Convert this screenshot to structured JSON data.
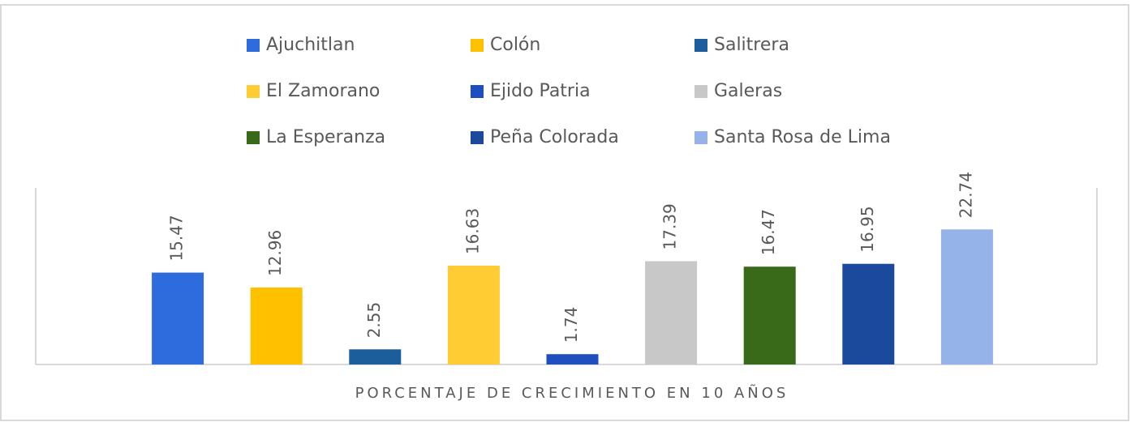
{
  "chart_data": {
    "type": "bar",
    "categories": [
      "PORCENTAJE DE CRECIMIENTO EN 10 AÑOS"
    ],
    "series": [
      {
        "name": "Ajuchitlan",
        "color": "#2e6bdc",
        "values": [
          15.47
        ]
      },
      {
        "name": "Colón",
        "color": "#ffc000",
        "values": [
          12.96
        ]
      },
      {
        "name": "Salitrera",
        "color": "#1c5d9c",
        "values": [
          2.55
        ]
      },
      {
        "name": "El Zamorano",
        "color": "#ffcc33",
        "values": [
          16.63
        ]
      },
      {
        "name": "Ejido Patria",
        "color": "#1f4fbf",
        "values": [
          1.74
        ]
      },
      {
        "name": "Galeras",
        "color": "#c8c8c8",
        "values": [
          17.39
        ]
      },
      {
        "name": "La Esperanza",
        "color": "#386a1a",
        "values": [
          16.47
        ]
      },
      {
        "name": "Peña Colorada",
        "color": "#1b4a9c",
        "values": [
          16.95
        ]
      },
      {
        "name": "Santa Rosa de Lima",
        "color": "#95b3e8",
        "values": [
          22.74
        ]
      }
    ],
    "ylim": [
      0,
      30
    ],
    "legend": "top"
  }
}
